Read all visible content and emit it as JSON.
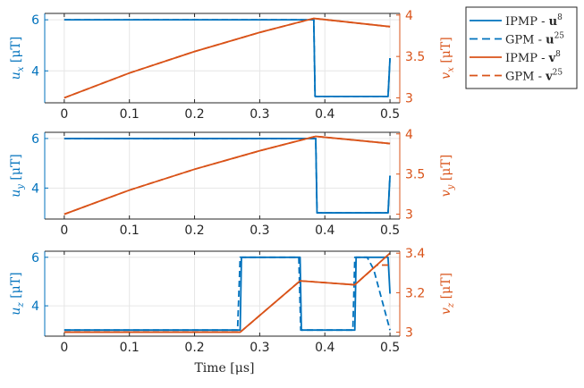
{
  "colors": {
    "blue": "#0072bd",
    "orange": "#d95319",
    "grid": "#e6e6e6",
    "axis": "#262626"
  },
  "x_axis": {
    "label": "Time [μs]",
    "ticks": [
      0,
      0.1,
      0.2,
      0.3,
      0.4,
      0.5
    ],
    "tick_labels": [
      "0",
      "0.1",
      "0.2",
      "0.3",
      "0.4",
      "0.5"
    ]
  },
  "legend": {
    "placement": "top-right-outside",
    "entries": [
      {
        "prefix": "IPMP - ",
        "sym": "u",
        "sup": "8",
        "color": "blue",
        "style": "solid"
      },
      {
        "prefix": "GPM - ",
        "sym": "u",
        "sup": "25",
        "color": "blue",
        "style": "dashed"
      },
      {
        "prefix": "IPMP - ",
        "sym": "v",
        "sup": "8",
        "color": "orange",
        "style": "solid"
      },
      {
        "prefix": "GPM - ",
        "sym": "v",
        "sup": "25",
        "color": "orange",
        "style": "dashed"
      }
    ]
  },
  "chart_data": [
    {
      "type": "line",
      "xlim": [
        -0.03,
        0.515
      ],
      "grid": true,
      "left_axis": {
        "label_sym": "u",
        "label_sub": "x",
        "label_unit": " [μT]",
        "ylim": [
          2.75,
          6.25
        ],
        "ticks": [
          4,
          6
        ],
        "tick_labels": [
          "4",
          "6"
        ]
      },
      "right_axis": {
        "label_sym": "v",
        "label_sub": "x",
        "label_unit": " [μT]",
        "ylim": [
          2.94,
          4.02
        ],
        "ticks": [
          3,
          3.5,
          4
        ],
        "tick_labels": [
          "3",
          "3.5",
          "4"
        ]
      },
      "series": [
        {
          "axis": "left",
          "color": "blue",
          "style": "solid",
          "x": [
            0,
            0.383,
            0.385,
            0.497,
            0.5
          ],
          "y": [
            6,
            6,
            3,
            3,
            4.5
          ]
        },
        {
          "axis": "left",
          "color": "blue",
          "style": "dashed",
          "x": [
            0,
            0.383,
            0.385,
            0.497,
            0.5
          ],
          "y": [
            6,
            6,
            3,
            3,
            4.5
          ]
        },
        {
          "axis": "right",
          "color": "orange",
          "style": "solid",
          "x": [
            0,
            0.1,
            0.2,
            0.3,
            0.383,
            0.5
          ],
          "y": [
            3,
            3.3,
            3.56,
            3.79,
            3.96,
            3.86
          ]
        },
        {
          "axis": "right",
          "color": "orange",
          "style": "dashed",
          "x": [
            0,
            0.1,
            0.2,
            0.3,
            0.383,
            0.5
          ],
          "y": [
            3,
            3.3,
            3.56,
            3.79,
            3.96,
            3.86
          ]
        }
      ]
    },
    {
      "type": "line",
      "xlim": [
        -0.03,
        0.515
      ],
      "grid": true,
      "left_axis": {
        "label_sym": "u",
        "label_sub": "y",
        "label_unit": " [μT]",
        "ylim": [
          2.75,
          6.25
        ],
        "ticks": [
          4,
          6
        ],
        "tick_labels": [
          "4",
          "6"
        ]
      },
      "right_axis": {
        "label_sym": "v",
        "label_sub": "y",
        "label_unit": " [μT]",
        "ylim": [
          2.94,
          4.02
        ],
        "ticks": [
          3,
          3.5,
          4
        ],
        "tick_labels": [
          "3",
          "3.5",
          "4"
        ]
      },
      "series": [
        {
          "axis": "left",
          "color": "blue",
          "style": "solid",
          "x": [
            0,
            0.386,
            0.388,
            0.497,
            0.5
          ],
          "y": [
            6,
            6,
            3,
            3,
            4.5
          ]
        },
        {
          "axis": "left",
          "color": "blue",
          "style": "dashed",
          "x": [
            0,
            0.386,
            0.388,
            0.497,
            0.5
          ],
          "y": [
            6,
            6,
            3,
            3,
            4.5
          ]
        },
        {
          "axis": "right",
          "color": "orange",
          "style": "solid",
          "x": [
            0,
            0.1,
            0.2,
            0.3,
            0.386,
            0.5
          ],
          "y": [
            3,
            3.3,
            3.56,
            3.79,
            3.97,
            3.88
          ]
        },
        {
          "axis": "right",
          "color": "orange",
          "style": "dashed",
          "x": [
            0,
            0.1,
            0.2,
            0.3,
            0.386,
            0.5
          ],
          "y": [
            3,
            3.3,
            3.56,
            3.79,
            3.97,
            3.88
          ]
        }
      ]
    },
    {
      "type": "line",
      "xlim": [
        -0.03,
        0.515
      ],
      "grid": true,
      "left_axis": {
        "label_sym": "u",
        "label_sub": "z",
        "label_unit": " [μT]",
        "ylim": [
          2.75,
          6.25
        ],
        "ticks": [
          4,
          6
        ],
        "tick_labels": [
          "4",
          "6"
        ]
      },
      "right_axis": {
        "label_sym": "v",
        "label_sub": "z",
        "label_unit": " [μT]",
        "ylim": [
          2.98,
          3.41
        ],
        "ticks": [
          3,
          3.2,
          3.4
        ],
        "tick_labels": [
          "3",
          "3.2",
          "3.4"
        ]
      },
      "series": [
        {
          "axis": "left",
          "color": "blue",
          "style": "solid",
          "x": [
            0,
            0.27,
            0.272,
            0.362,
            0.364,
            0.446,
            0.448,
            0.497,
            0.5
          ],
          "y": [
            3,
            3,
            6,
            6,
            3,
            3,
            6,
            6,
            4.5
          ]
        },
        {
          "axis": "left",
          "color": "blue",
          "style": "dashed",
          "x": [
            0,
            0.266,
            0.27,
            0.36,
            0.363,
            0.443,
            0.446,
            0.465,
            0.475,
            0.49,
            0.5
          ],
          "y": [
            3,
            3,
            6,
            6,
            3,
            3,
            6,
            6,
            5.5,
            4.0,
            3.0
          ]
        },
        {
          "axis": "right",
          "color": "orange",
          "style": "solid",
          "x": [
            0,
            0.27,
            0.362,
            0.446,
            0.5
          ],
          "y": [
            3,
            3,
            3.26,
            3.24,
            3.4
          ]
        },
        {
          "axis": "right",
          "color": "orange",
          "style": "dashed",
          "x": [
            0,
            0.27,
            0.362,
            0.446,
            0.48,
            0.5
          ],
          "y": [
            3,
            3,
            3.26,
            3.24,
            3.34,
            3.34
          ]
        }
      ]
    }
  ]
}
